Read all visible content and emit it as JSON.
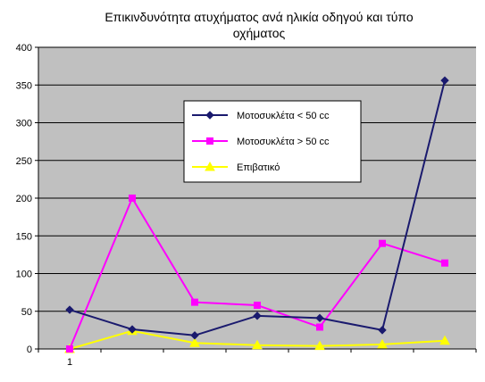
{
  "chart_data": {
    "type": "line",
    "title_lines": [
      "Επικινδυνότητα ατυχήματος ανά ηλικία οδηγού και τύπο",
      "οχήματος"
    ],
    "xlabel": "",
    "ylabel": "",
    "x_tick_labels": [
      "1",
      "",
      "",
      "",
      "",
      "",
      ""
    ],
    "ylim": [
      0,
      400
    ],
    "y_ticks": [
      0,
      50,
      100,
      150,
      200,
      250,
      300,
      350,
      400
    ],
    "grid": "horizontal",
    "legend_position": "center-right",
    "series": [
      {
        "name": "Μοτοσυκλέτα < 50 cc",
        "color": "#1a1a6e",
        "marker": "diamond",
        "values": [
          52,
          26,
          18,
          44,
          41,
          25,
          356
        ]
      },
      {
        "name": "Μοτοσυκλέτα > 50 cc",
        "color": "#ff00ff",
        "marker": "square",
        "values": [
          0,
          200,
          62,
          58,
          29,
          140,
          114
        ]
      },
      {
        "name": "Επιβατικό",
        "color": "#ffff00",
        "marker": "triangle",
        "values": [
          0,
          24,
          8,
          5,
          4,
          6,
          11
        ]
      }
    ]
  },
  "colors": {
    "plot_background": "#c0c0c0",
    "gridline": "#000000"
  }
}
